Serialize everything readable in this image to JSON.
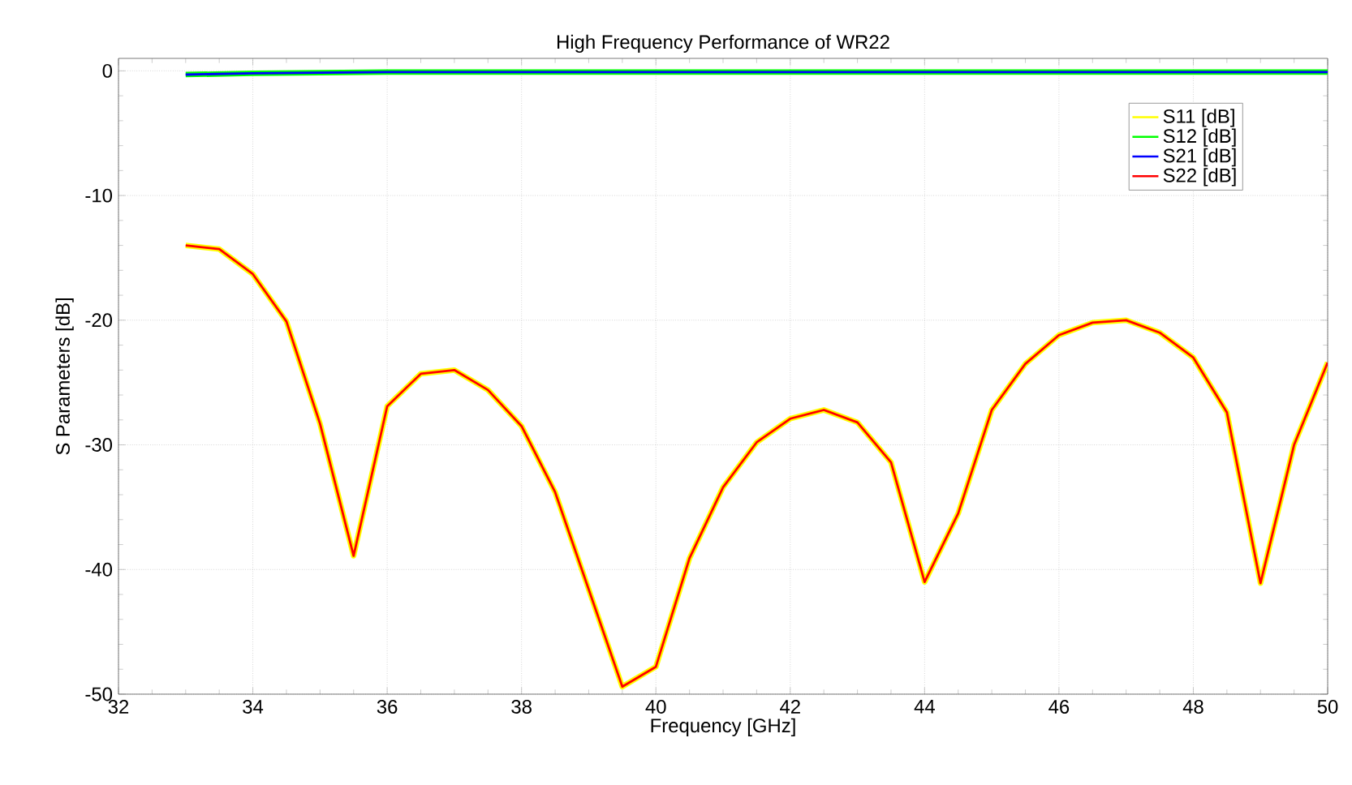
{
  "chart_data": {
    "type": "line",
    "title": "High Frequency Performance of WR22",
    "xlabel": "Frequency [GHz]",
    "ylabel": "S Parameters [dB]",
    "xlim": [
      32,
      50
    ],
    "ylim": [
      -50,
      1
    ],
    "xticks": [
      32,
      34,
      36,
      38,
      40,
      42,
      44,
      46,
      48,
      50
    ],
    "yticks": [
      -50,
      -40,
      -30,
      -20,
      -10,
      0
    ],
    "grid": true,
    "legend": "top right",
    "marker": "none",
    "line_style": "solid",
    "series": [
      {
        "name": "S11 [dB]",
        "color": "#ffff00",
        "x": [
          33,
          33.5,
          34,
          34.5,
          35,
          35.5,
          36,
          36.5,
          37,
          37.5,
          38,
          38.5,
          39,
          39.5,
          40,
          40.5,
          41,
          41.5,
          42,
          42.5,
          43,
          43.5,
          44,
          44.5,
          45,
          45.5,
          46,
          46.5,
          47,
          47.5,
          48,
          48.5,
          49,
          49.5,
          50
        ],
        "values": [
          -14.0,
          -14.3,
          -16.3,
          -20.1,
          -28.3,
          -38.9,
          -26.9,
          -24.3,
          -24.0,
          -25.6,
          -28.5,
          -33.8,
          -41.6,
          -49.4,
          -47.8,
          -39.1,
          -33.4,
          -29.8,
          -27.9,
          -27.2,
          -28.2,
          -31.4,
          -41.0,
          -35.5,
          -27.2,
          -23.5,
          -21.2,
          -20.2,
          -20.0,
          -21.0,
          -23.0,
          -27.4,
          -41.1,
          -30.0,
          -23.4
        ]
      },
      {
        "name": "S12 [dB]",
        "color": "#00ff00",
        "x": [
          33,
          34,
          36,
          38,
          42,
          46,
          50
        ],
        "values": [
          -0.3,
          -0.2,
          -0.1,
          -0.1,
          -0.1,
          -0.1,
          -0.1
        ]
      },
      {
        "name": "S21 [dB]",
        "color": "#0000ff",
        "x": [
          33,
          34,
          36,
          38,
          42,
          46,
          50
        ],
        "values": [
          -0.3,
          -0.2,
          -0.1,
          -0.1,
          -0.1,
          -0.1,
          -0.1
        ]
      },
      {
        "name": "S22 [dB]",
        "color": "#ff0000",
        "x": [
          33,
          33.5,
          34,
          34.5,
          35,
          35.5,
          36,
          36.5,
          37,
          37.5,
          38,
          38.5,
          39,
          39.5,
          40,
          40.5,
          41,
          41.5,
          42,
          42.5,
          43,
          43.5,
          44,
          44.5,
          45,
          45.5,
          46,
          46.5,
          47,
          47.5,
          48,
          48.5,
          49,
          49.5,
          50
        ],
        "values": [
          -14.0,
          -14.3,
          -16.3,
          -20.1,
          -28.3,
          -38.9,
          -26.9,
          -24.3,
          -24.0,
          -25.6,
          -28.5,
          -33.8,
          -41.6,
          -49.4,
          -47.8,
          -39.1,
          -33.4,
          -29.8,
          -27.9,
          -27.2,
          -28.2,
          -31.4,
          -41.0,
          -35.5,
          -27.2,
          -23.5,
          -21.2,
          -20.2,
          -20.0,
          -21.0,
          -23.0,
          -27.4,
          -41.1,
          -30.0,
          -23.4
        ]
      }
    ]
  }
}
